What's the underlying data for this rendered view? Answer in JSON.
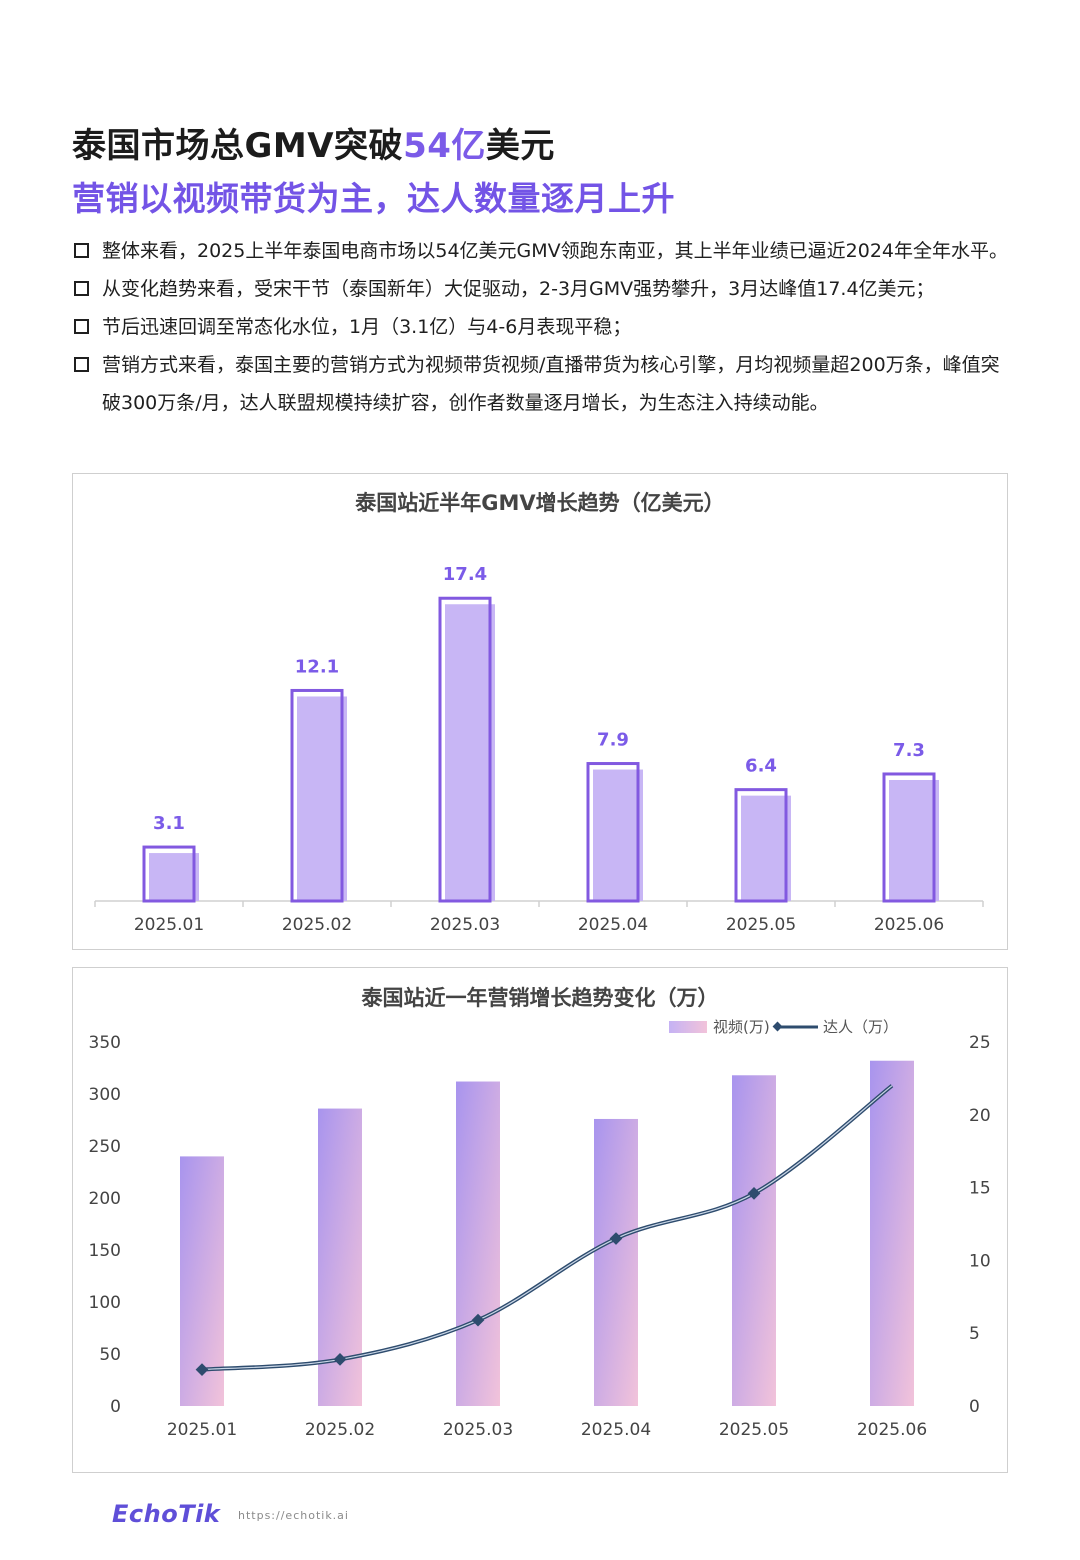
{
  "header": {
    "title_pre": "泰国市场总GMV突破",
    "title_highlight": "54亿",
    "title_post": "美元",
    "subtitle": "营销以视频带货为主，达人数量逐月上升"
  },
  "bullets": [
    "整体来看，2025上半年泰国电商市场以54亿美元GMV领跑东南亚，其上半年业绩已逼近2024年全年水平。",
    "从变化趋势来看，受宋干节（泰国新年）大促驱动，2-3月GMV强势攀升，3月达峰值17.4亿美元；",
    "节后迅速回调至常态化水位，1月（3.1亿）与4-6月表现平稳；",
    "营销方式来看，泰国主要的营销方式为视频带货视频/直播带货为核心引擎，月均视频量超200万条，峰值突破300万条/月，达人联盟规模持续扩容，创作者数量逐月增长，为生态注入持续动能。"
  ],
  "chart_data": [
    {
      "type": "bar",
      "title": "泰国站近半年GMV增长趋势（亿美元）",
      "categories": [
        "2025.01",
        "2025.02",
        "2025.03",
        "2025.04",
        "2025.05",
        "2025.06"
      ],
      "values": [
        3.1,
        12.1,
        17.4,
        7.9,
        6.4,
        7.3
      ],
      "ylim": [
        0,
        18
      ],
      "grid": false,
      "colors": {
        "fill": "#c8b6f5",
        "outline": "#8259e0",
        "label": "#7b5be8"
      }
    },
    {
      "type": "bar",
      "title": "泰国站近一年营销增长趋势变化（万）",
      "categories": [
        "2025.01",
        "2025.02",
        "2025.03",
        "2025.04",
        "2025.05",
        "2025.06"
      ],
      "series": [
        {
          "name": "视频(万)",
          "type": "bar",
          "axis": "left",
          "values": [
            240,
            286,
            312,
            276,
            318,
            332
          ]
        },
        {
          "name": "达人（万）",
          "type": "line",
          "axis": "right",
          "values": [
            2.5,
            3.2,
            5.9,
            11.5,
            14.6,
            22.0
          ]
        }
      ],
      "y_left": {
        "range": [
          0,
          350
        ],
        "ticks": [
          "0",
          "50",
          "100",
          "150",
          "200",
          "250",
          "300",
          "350"
        ]
      },
      "y_right": {
        "range": [
          0,
          25
        ],
        "ticks": [
          "0",
          "5",
          "10",
          "15",
          "20",
          "25"
        ]
      },
      "legend": "top-right",
      "grid": false,
      "colors": {
        "bar_top": "#a894ee",
        "bar_bottom": "#f2c3da",
        "line": "#2e4c6e"
      }
    }
  ],
  "footer": {
    "logo": "EchoTik",
    "url": "https://echotik.ai"
  }
}
